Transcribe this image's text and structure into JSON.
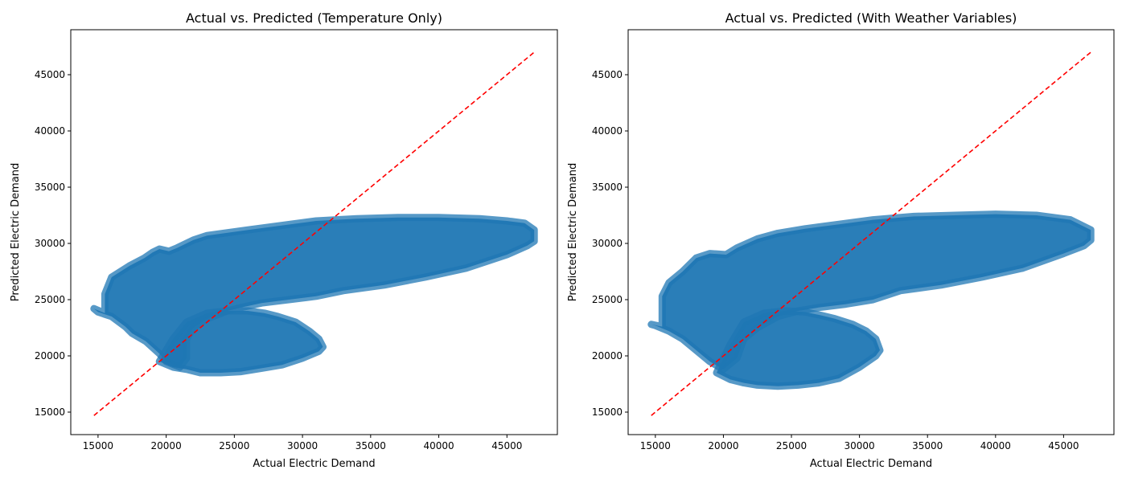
{
  "chart_data": [
    {
      "type": "scatter",
      "title": "Actual vs. Predicted (Temperature Only)",
      "xlabel": "Actual Electric Demand",
      "ylabel": "Predicted Electric Demand",
      "xlim": [
        13000,
        48700
      ],
      "ylim": [
        13000,
        49000
      ],
      "xticks": [
        15000,
        20000,
        25000,
        30000,
        35000,
        40000,
        45000
      ],
      "yticks": [
        15000,
        20000,
        25000,
        30000,
        35000,
        40000,
        45000
      ],
      "grid": false,
      "point_color": "#1f77b4",
      "reference_line": {
        "x": [
          14700,
          47000
        ],
        "y": [
          14700,
          47000
        ],
        "color": "#ff0000",
        "style": "dashed"
      },
      "point_cloud_outline": {
        "x": [
          14700,
          15500,
          15500,
          16000,
          17300,
          18400,
          19000,
          19500,
          20200,
          20800,
          22000,
          23000,
          26000,
          28500,
          31000,
          34000,
          37000,
          40000,
          43000,
          45000,
          46300,
          47000,
          47000,
          46500,
          45000,
          42000,
          39000,
          36000,
          33000,
          31000,
          29000,
          27000,
          25500,
          24500,
          23000,
          22000,
          21500,
          21500,
          21000,
          20000,
          19500,
          18500,
          17500,
          17000,
          16000,
          15000,
          14700
        ],
        "y": [
          24200,
          23800,
          25500,
          27000,
          28000,
          28700,
          29200,
          29500,
          29300,
          29600,
          30300,
          30700,
          31200,
          31600,
          32000,
          32200,
          32300,
          32300,
          32200,
          32000,
          31800,
          31200,
          30200,
          29800,
          29000,
          27800,
          27000,
          26300,
          25800,
          25300,
          25000,
          24700,
          24300,
          24000,
          23300,
          22500,
          21500,
          19800,
          19000,
          19500,
          20200,
          21300,
          22000,
          22600,
          23500,
          23900,
          24200
        ]
      },
      "lower_lobe_outline": {
        "x": [
          19500,
          20500,
          21500,
          22500,
          24000,
          25500,
          27000,
          28500,
          30000,
          31200,
          31500,
          31200,
          30500,
          29500,
          28200,
          27200,
          26000,
          24500,
          23000,
          21500,
          20500,
          19500
        ],
        "y": [
          19500,
          19000,
          18800,
          18500,
          18500,
          18600,
          18900,
          19200,
          19800,
          20400,
          20800,
          21500,
          22200,
          23000,
          23500,
          23800,
          24000,
          24000,
          23800,
          23000,
          21500,
          19500
        ]
      }
    },
    {
      "type": "scatter",
      "title": "Actual vs. Predicted (With Weather Variables)",
      "xlabel": "Actual Electric Demand",
      "ylabel": "Predicted Electric Demand",
      "xlim": [
        13000,
        48700
      ],
      "ylim": [
        13000,
        49000
      ],
      "xticks": [
        15000,
        20000,
        25000,
        30000,
        35000,
        40000,
        45000
      ],
      "yticks": [
        15000,
        20000,
        25000,
        30000,
        35000,
        40000,
        45000
      ],
      "grid": false,
      "point_color": "#1f77b4",
      "reference_line": {
        "x": [
          14700,
          47000
        ],
        "y": [
          14700,
          47000
        ],
        "color": "#ff0000",
        "style": "dashed"
      },
      "point_cloud_outline": {
        "x": [
          14700,
          15500,
          15500,
          16000,
          17000,
          18000,
          19000,
          20200,
          21000,
          22500,
          24000,
          26000,
          28500,
          31000,
          34000,
          37000,
          40000,
          43000,
          45500,
          47000,
          47000,
          46500,
          45000,
          42000,
          39000,
          36000,
          33000,
          31000,
          29000,
          27000,
          25500,
          24000,
          22500,
          21500,
          21000,
          20000,
          19000,
          18000,
          17000,
          16000,
          15000,
          14700
        ],
        "y": [
          22800,
          22600,
          25300,
          26500,
          27500,
          28700,
          29100,
          29000,
          29600,
          30400,
          30900,
          31300,
          31700,
          32100,
          32400,
          32500,
          32600,
          32500,
          32100,
          31200,
          30300,
          29800,
          29100,
          27800,
          27000,
          26300,
          25800,
          25000,
          24600,
          24300,
          24000,
          23500,
          22500,
          21500,
          19800,
          18800,
          19500,
          20500,
          21500,
          22200,
          22700,
          22800
        ]
      },
      "lower_lobe_outline": {
        "x": [
          19500,
          20500,
          21500,
          22500,
          24000,
          25500,
          27000,
          28500,
          30000,
          31200,
          31500,
          31200,
          30500,
          29500,
          28200,
          27200,
          26000,
          24500,
          23000,
          21500,
          20500,
          19500
        ],
        "y": [
          18500,
          17900,
          17600,
          17400,
          17300,
          17400,
          17600,
          18000,
          19000,
          20000,
          20500,
          21500,
          22200,
          22800,
          23300,
          23600,
          23900,
          24000,
          23800,
          23000,
          21000,
          18500
        ]
      }
    }
  ]
}
